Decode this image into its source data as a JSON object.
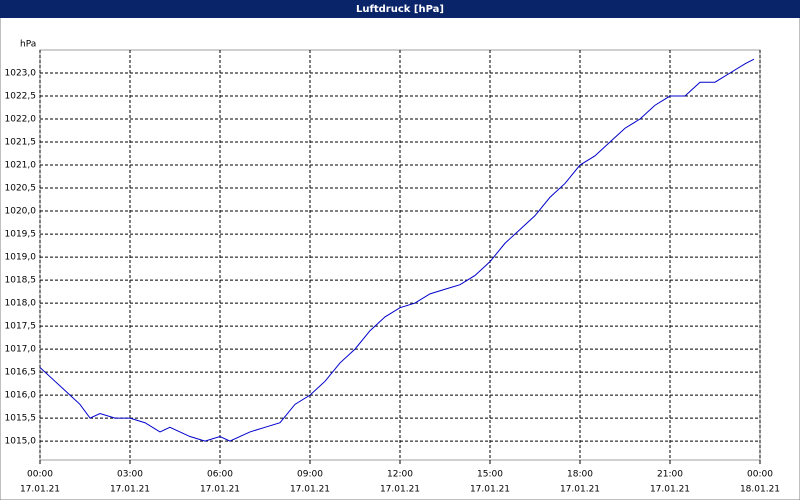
{
  "chart_data": {
    "type": "line",
    "title": "Luftdruck [hPa]",
    "y_unit": "hPa",
    "x": [
      0,
      0.5,
      1,
      1.33,
      1.67,
      2,
      2.5,
      3,
      3.5,
      4,
      4.33,
      5,
      5.5,
      6,
      6.33,
      7,
      7.5,
      8,
      8.5,
      9,
      9.5,
      10,
      10.5,
      11,
      11.5,
      12,
      12.5,
      13,
      13.5,
      14,
      14.5,
      15,
      15.5,
      16,
      16.5,
      17,
      17.5,
      18,
      18.5,
      19,
      19.5,
      20,
      20.5,
      21,
      21.5,
      22,
      22.5,
      23,
      23.5,
      23.8
    ],
    "series": [
      {
        "name": "Luftdruck",
        "color": "#0000cc",
        "values": [
          1016.6,
          1016.3,
          1016.0,
          1015.8,
          1015.5,
          1015.6,
          1015.5,
          1015.5,
          1015.4,
          1015.2,
          1015.3,
          1015.1,
          1015.0,
          1015.1,
          1015.0,
          1015.2,
          1015.3,
          1015.4,
          1015.8,
          1016.0,
          1016.3,
          1016.7,
          1017.0,
          1017.4,
          1017.7,
          1017.9,
          1018.0,
          1018.2,
          1018.3,
          1018.4,
          1018.6,
          1018.9,
          1019.3,
          1019.6,
          1019.9,
          1020.3,
          1020.6,
          1021.0,
          1021.2,
          1021.5,
          1021.8,
          1022.0,
          1022.3,
          1022.5,
          1022.5,
          1022.8,
          1022.8,
          1023.0,
          1023.2,
          1023.3
        ]
      }
    ],
    "xlim": [
      0,
      24
    ],
    "xticks": [
      {
        "value": 0,
        "label": "00:00",
        "date": "17.01.21"
      },
      {
        "value": 3,
        "label": "03:00",
        "date": "17.01.21"
      },
      {
        "value": 6,
        "label": "06:00",
        "date": "17.01.21"
      },
      {
        "value": 9,
        "label": "09:00",
        "date": "17.01.21"
      },
      {
        "value": 12,
        "label": "12:00",
        "date": "17.01.21"
      },
      {
        "value": 15,
        "label": "15:00",
        "date": "17.01.21"
      },
      {
        "value": 18,
        "label": "18:00",
        "date": "17.01.21"
      },
      {
        "value": 21,
        "label": "21:00",
        "date": "17.01.21"
      },
      {
        "value": 24,
        "label": "00:00",
        "date": "18.01.21"
      }
    ],
    "ylim": [
      1014.59,
      1023.5
    ],
    "yticks": [
      {
        "value": 1015,
        "label": "1015,0"
      },
      {
        "value": 1015.5,
        "label": "1015,5"
      },
      {
        "value": 1016,
        "label": "1016,0"
      },
      {
        "value": 1016.5,
        "label": "1016,5"
      },
      {
        "value": 1017,
        "label": "1017,0"
      },
      {
        "value": 1017.5,
        "label": "1017,5"
      },
      {
        "value": 1018,
        "label": "1018,0"
      },
      {
        "value": 1018.5,
        "label": "1018,5"
      },
      {
        "value": 1019,
        "label": "1019,0"
      },
      {
        "value": 1019.5,
        "label": "1019,5"
      },
      {
        "value": 1020,
        "label": "1020,0"
      },
      {
        "value": 1020.5,
        "label": "1020,5"
      },
      {
        "value": 1021,
        "label": "1021,0"
      },
      {
        "value": 1021.5,
        "label": "1021,5"
      },
      {
        "value": 1022,
        "label": "1022,0"
      },
      {
        "value": 1022.5,
        "label": "1022,5"
      },
      {
        "value": 1023,
        "label": "1023,0"
      }
    ],
    "grid": true
  }
}
